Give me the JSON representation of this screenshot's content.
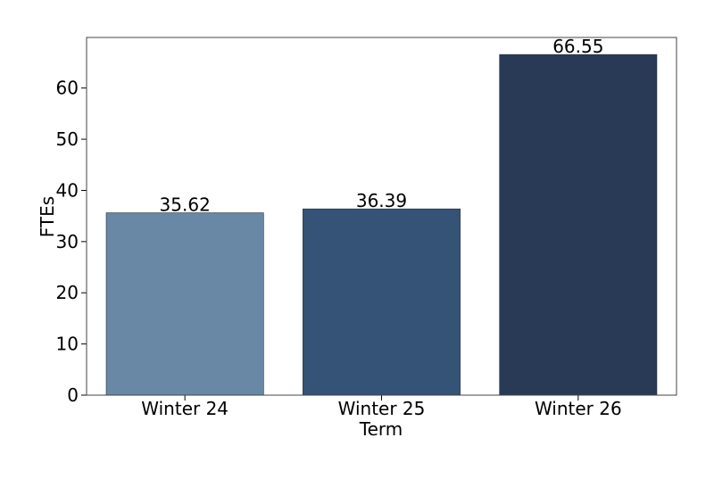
{
  "chart_data": {
    "type": "bar",
    "categories": [
      "Winter 24",
      "Winter 25",
      "Winter 26"
    ],
    "values": [
      35.62,
      36.39,
      66.55
    ],
    "colors": [
      "#6888a5",
      "#355277",
      "#283a55"
    ],
    "xlabel": "Term",
    "ylabel": "FTEs",
    "ylim": [
      0,
      69.88
    ],
    "yticks": [
      0,
      10,
      20,
      30,
      40,
      50,
      60
    ]
  }
}
